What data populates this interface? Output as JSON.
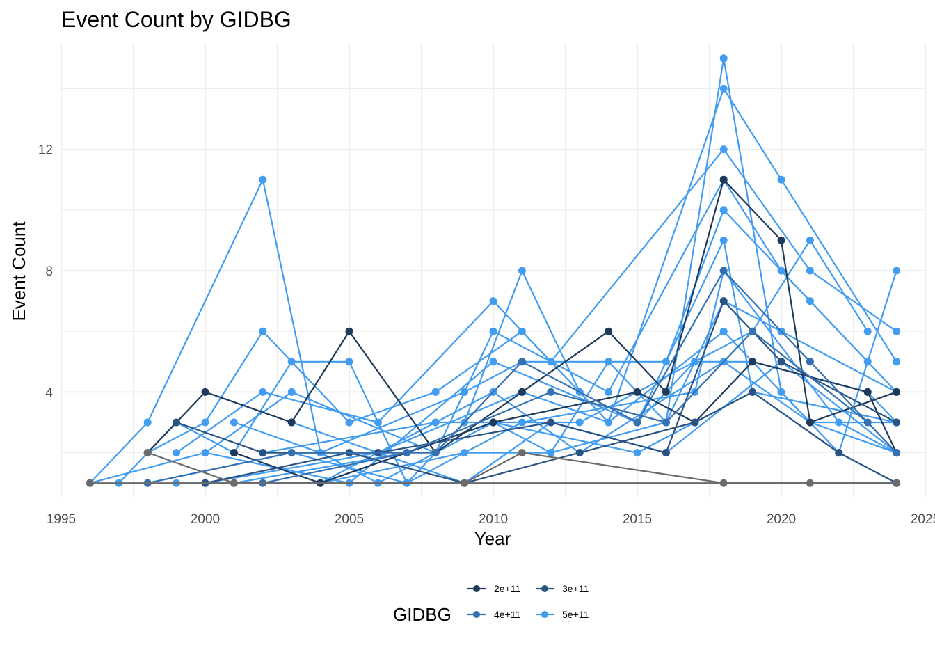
{
  "chart_data": {
    "type": "line",
    "title": "Event Count by GIDBG",
    "xlabel": "Year",
    "ylabel": "Event Count",
    "xlim": [
      1995,
      2025
    ],
    "ylim": [
      0.5,
      15.5
    ],
    "xticks": [
      1995,
      2000,
      2005,
      2010,
      2015,
      2020,
      2025
    ],
    "yticks": [
      4,
      8,
      12
    ],
    "grid": true,
    "legend": {
      "title": "GIDBG",
      "position": "bottom",
      "entries": [
        {
          "label": "2e+11",
          "color": "#1e3a5a"
        },
        {
          "label": "3e+11",
          "color": "#2a5283"
        },
        {
          "label": "4e+11",
          "color": "#3570b0"
        },
        {
          "label": "5e+11",
          "color": "#429cf0"
        }
      ]
    },
    "colors": {
      "g2": "#1e3a5a",
      "g3": "#2a5283",
      "g4": "#3570b0",
      "g5": "#429cf0",
      "missing": "#6b6b6b"
    },
    "series": [
      {
        "color": "g5",
        "x": [
          1996,
          1998,
          2002,
          2004,
          2006,
          2008,
          2010,
          2012,
          2014,
          2016,
          2018,
          2020,
          2022,
          2024
        ],
        "y": [
          1,
          3,
          11,
          2,
          1,
          2,
          3,
          2,
          5,
          3,
          15,
          4,
          2,
          8
        ]
      },
      {
        "color": "g5",
        "x": [
          1997,
          1999,
          2001,
          2003,
          2005,
          2007,
          2009,
          2011,
          2013,
          2015,
          2017,
          2019,
          2021,
          2023
        ],
        "y": [
          1,
          3,
          2,
          5,
          5,
          1,
          3,
          8,
          4,
          3,
          5,
          6,
          9,
          6
        ]
      },
      {
        "color": "g5",
        "x": [
          1998,
          2000,
          2002,
          2005,
          2008,
          2011,
          2014,
          2018,
          2020,
          2024
        ],
        "y": [
          2,
          3,
          6,
          3,
          4,
          6,
          3,
          14,
          11,
          5
        ]
      },
      {
        "color": "g5",
        "x": [
          1999,
          2002,
          2006,
          2010,
          2012,
          2018,
          2021,
          2024
        ],
        "y": [
          2,
          4,
          3,
          7,
          5,
          12,
          8,
          6
        ]
      },
      {
        "color": "g5",
        "x": [
          2000,
          2003,
          2008,
          2010,
          2014,
          2018,
          2020,
          2023
        ],
        "y": [
          2,
          4,
          2,
          6,
          4,
          11,
          8,
          5
        ]
      },
      {
        "color": "g5",
        "x": [
          2001,
          2004,
          2009,
          2011,
          2016,
          2018,
          2021,
          2024
        ],
        "y": [
          3,
          2,
          4,
          5,
          5,
          10,
          7,
          4
        ]
      },
      {
        "color": "g5",
        "x": [
          1996,
          2000,
          2005,
          2010,
          2015,
          2018,
          2019,
          2024
        ],
        "y": [
          1,
          2,
          1,
          5,
          3,
          9,
          4,
          3
        ]
      },
      {
        "color": "g5",
        "x": [
          1998,
          2003,
          2007,
          2011,
          2017,
          2018,
          2022,
          2024
        ],
        "y": [
          1,
          2,
          1,
          3,
          4,
          8,
          3,
          2
        ]
      },
      {
        "color": "g5",
        "x": [
          1999,
          2004,
          2009,
          2012,
          2016,
          2018,
          2020,
          2024
        ],
        "y": [
          1,
          1,
          2,
          2,
          3,
          7,
          6,
          4
        ]
      },
      {
        "color": "g5",
        "x": [
          2000,
          2006,
          2011,
          2014,
          2018,
          2021,
          2024
        ],
        "y": [
          1,
          2,
          4,
          3,
          6,
          3,
          2
        ]
      },
      {
        "color": "g5",
        "x": [
          2002,
          2008,
          2013,
          2017,
          2019,
          2023,
          2024
        ],
        "y": [
          2,
          3,
          3,
          5,
          5,
          4,
          3
        ]
      },
      {
        "color": "g5",
        "x": [
          2001,
          2007,
          2010,
          2015,
          2019,
          2022,
          2024
        ],
        "y": [
          1,
          2,
          3,
          2,
          4,
          2,
          1
        ]
      },
      {
        "color": "g5",
        "x": [
          2003,
          2009,
          2012,
          2016,
          2020,
          2024
        ],
        "y": [
          3,
          1,
          3,
          2,
          5,
          2
        ]
      },
      {
        "color": "g5",
        "x": [
          2004,
          2010,
          2013,
          2018,
          2021,
          2024
        ],
        "y": [
          1,
          4,
          2,
          5,
          3,
          3
        ]
      },
      {
        "color": "g2",
        "x": [
          1998,
          2000,
          2003,
          2005,
          2008,
          2011,
          2014,
          2016,
          2018,
          2020,
          2021,
          2024
        ],
        "y": [
          2,
          4,
          3,
          6,
          2,
          4,
          6,
          4,
          11,
          9,
          3,
          4
        ]
      },
      {
        "color": "g2",
        "x": [
          2001,
          2004,
          2010,
          2015,
          2017,
          2019,
          2023,
          2024
        ],
        "y": [
          2,
          1,
          3,
          4,
          3,
          5,
          4,
          2
        ]
      },
      {
        "color": "g3",
        "x": [
          1999,
          2002,
          2006,
          2012,
          2016,
          2018,
          2020,
          2024
        ],
        "y": [
          3,
          2,
          2,
          3,
          2,
          7,
          5,
          3
        ]
      },
      {
        "color": "g3",
        "x": [
          2000,
          2005,
          2009,
          2013,
          2017,
          2019,
          2022,
          2024
        ],
        "y": [
          1,
          2,
          1,
          2,
          3,
          4,
          2,
          1
        ]
      },
      {
        "color": "g4",
        "x": [
          1998,
          2003,
          2008,
          2011,
          2015,
          2018,
          2021,
          2024
        ],
        "y": [
          1,
          2,
          2,
          5,
          3,
          8,
          5,
          2
        ]
      },
      {
        "color": "g4",
        "x": [
          2002,
          2007,
          2012,
          2016,
          2019,
          2023,
          2024
        ],
        "y": [
          1,
          2,
          4,
          3,
          6,
          3,
          2
        ]
      },
      {
        "color": "missing",
        "x": [
          1998,
          2001,
          2009,
          2011,
          2018,
          2021,
          2024
        ],
        "y": [
          2,
          1,
          1,
          2,
          1,
          1,
          1
        ]
      },
      {
        "color": "missing",
        "x": [
          1996,
          2024
        ],
        "y": [
          1,
          1
        ]
      }
    ]
  }
}
